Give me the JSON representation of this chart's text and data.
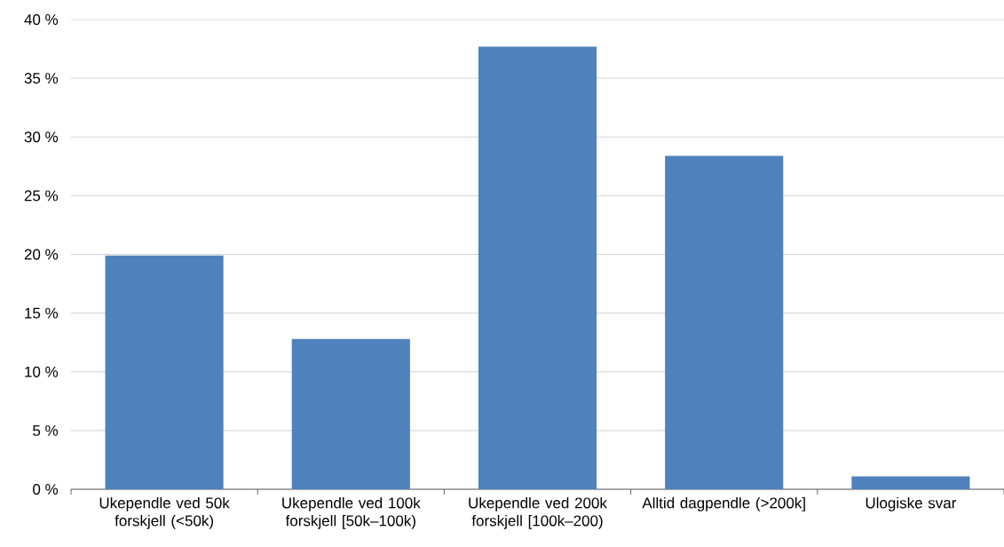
{
  "chart_data": {
    "type": "bar",
    "categories": [
      "Ukependle ved 50k forskjell (<50k)",
      "Ukependle ved 100k forskjell [50k–100k)",
      "Ukependle ved 200k forskjell [100k–200)",
      "Alltid dagpendle (>200k]",
      "Ulogiske svar"
    ],
    "values": [
      19.9,
      12.8,
      37.7,
      28.4,
      1.1
    ],
    "color": "#4f81bd",
    "ylim": [
      0,
      40
    ],
    "yticks": [
      {
        "value": 0,
        "label": "0 %"
      },
      {
        "value": 5,
        "label": "5 %"
      },
      {
        "value": 10,
        "label": "10 %"
      },
      {
        "value": 15,
        "label": "15 %"
      },
      {
        "value": 20,
        "label": "20 %"
      },
      {
        "value": 25,
        "label": "25 %"
      },
      {
        "value": 30,
        "label": "30 %"
      },
      {
        "value": 35,
        "label": "35 %"
      },
      {
        "value": 40,
        "label": "40 %"
      }
    ],
    "grid": "y"
  }
}
